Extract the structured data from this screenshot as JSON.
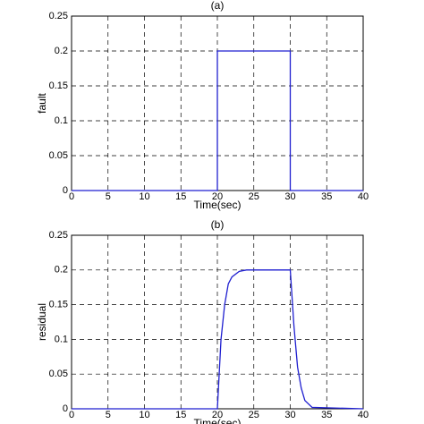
{
  "chart_data": [
    {
      "type": "line",
      "title": "(a)",
      "xlabel": "Time(sec)",
      "ylabel": "fault",
      "x": [
        0,
        20,
        20,
        30,
        30,
        40
      ],
      "values": [
        0,
        0,
        0.2,
        0.2,
        0,
        0
      ],
      "color": "#1f1fd0",
      "xlim": [
        0,
        40
      ],
      "xticks": [
        0,
        5,
        10,
        15,
        20,
        25,
        30,
        35,
        40
      ],
      "ylim": [
        0,
        0.25
      ],
      "yticks": [
        0,
        0.05,
        0.1,
        0.15,
        0.2,
        0.25
      ],
      "grid": true
    },
    {
      "type": "line",
      "title": "(b)",
      "xlabel": "Time(sec)",
      "ylabel": "residual",
      "x": [
        0,
        20,
        20.5,
        21,
        21.5,
        22,
        23,
        24,
        30,
        30.5,
        31,
        31.5,
        32,
        33,
        40
      ],
      "values": [
        0,
        0,
        0.1,
        0.15,
        0.18,
        0.19,
        0.198,
        0.2,
        0.2,
        0.12,
        0.06,
        0.03,
        0.012,
        0.002,
        0
      ],
      "color": "#1f1fd0",
      "xlim": [
        0,
        40
      ],
      "xticks": [
        0,
        5,
        10,
        15,
        20,
        25,
        30,
        35,
        40
      ],
      "ylim": [
        0,
        0.25
      ],
      "yticks": [
        0,
        0.05,
        0.1,
        0.15,
        0.2,
        0.25
      ],
      "grid": true
    }
  ]
}
